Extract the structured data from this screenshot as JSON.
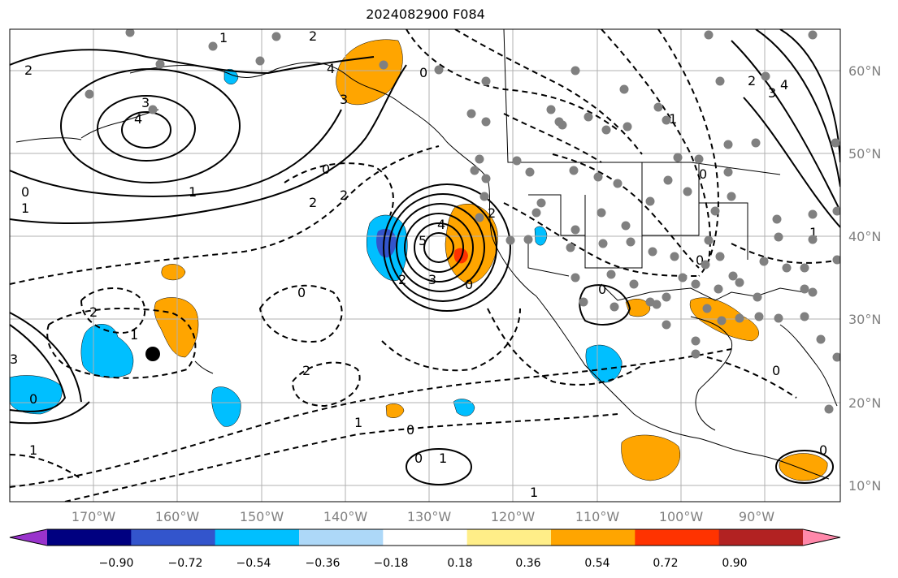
{
  "title": "2024082900 F084",
  "lat_ticks": [
    "60°N",
    "50°N",
    "40°N",
    "30°N",
    "20°N",
    "10°N"
  ],
  "lon_ticks": [
    "170°W",
    "160°W",
    "150°W",
    "140°W",
    "130°W",
    "120°W",
    "110°W",
    "100°W",
    "90°W"
  ],
  "colorbar": {
    "colors": [
      "#9933cc",
      "#000080",
      "#3355cc",
      "#00bfff",
      "#add8f8",
      "#ffffff",
      "#ffee88",
      "#ffa500",
      "#ff3300",
      "#b22222",
      "#ff88aa"
    ],
    "labels": [
      "−0.90",
      "−0.72",
      "−0.54",
      "−0.36",
      "−0.18",
      "0.18",
      "0.36",
      "0.54",
      "0.72",
      "0.90"
    ]
  },
  "contour_labels": [
    "1",
    "2",
    "2",
    "3",
    "4",
    "0",
    "1",
    "1",
    "0",
    "2",
    "2",
    "4",
    "5",
    "3",
    "2",
    "0",
    "0",
    "2",
    "3",
    "4",
    "0",
    "1",
    "3",
    "2",
    "1",
    "0",
    "1",
    "0",
    "1",
    "1",
    "0",
    "0",
    "2",
    "1",
    "0",
    "0",
    "0",
    "1",
    "3",
    "2",
    "4",
    "0"
  ],
  "colors": {
    "grid": "#b0b0b0",
    "coast": "#000000",
    "stations": "#808080",
    "marker": "#000000"
  }
}
